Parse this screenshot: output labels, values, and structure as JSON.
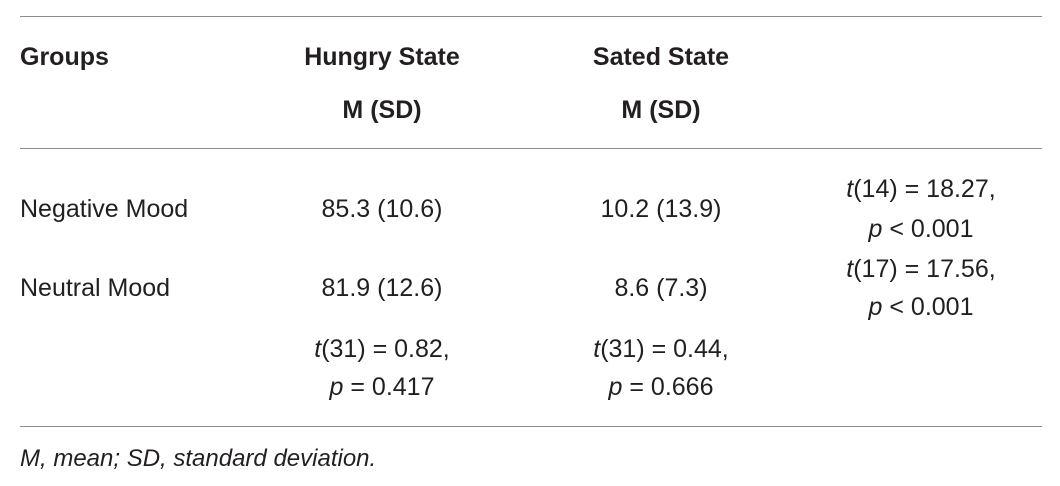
{
  "table": {
    "header": {
      "groups": "Groups",
      "hungry_line1": "Hungry State",
      "hungry_line2": "M (SD)",
      "sated_line1": "Sated State",
      "sated_line2": "M (SD)"
    },
    "rows": [
      {
        "group": "Negative Mood",
        "hungry": "85.3 (10.6)",
        "sated": "10.2 (13.9)",
        "test_t_var": "t",
        "test_t_rest": "(14) = 18.27,",
        "test_p_var": "p",
        "test_p_rest": " < 0.001"
      },
      {
        "group": "Neutral Mood",
        "hungry": "81.9 (12.6)",
        "sated": "8.6 (7.3)",
        "test_t_var": "t",
        "test_t_rest": "(17) = 17.56,",
        "test_p_var": "p",
        "test_p_rest": " < 0.001"
      }
    ],
    "between_tests": {
      "hungry": {
        "t_var": "t",
        "t_rest": "(31) = 0.82,",
        "p_var": "p",
        "p_rest": " = 0.417"
      },
      "sated": {
        "t_var": "t",
        "t_rest": "(31) = 0.44,",
        "p_var": "p",
        "p_rest": " = 0.666"
      }
    },
    "footnote": "M, mean; SD, standard deviation."
  }
}
